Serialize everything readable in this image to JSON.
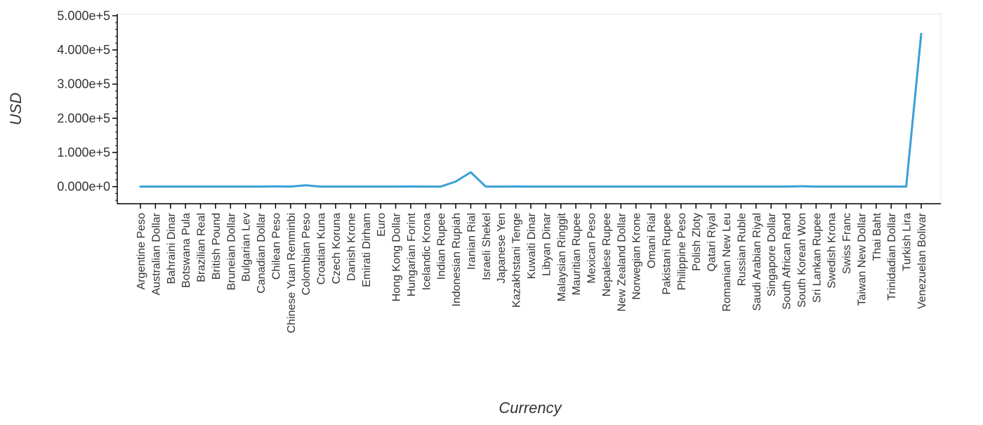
{
  "chart_data": {
    "type": "line",
    "title": "",
    "xlabel": "Currency",
    "ylabel": "USD",
    "ylim": [
      -50000,
      505000
    ],
    "yticks": [
      0,
      100000,
      200000,
      300000,
      400000,
      500000
    ],
    "ytick_labels": [
      "0.000e+0",
      "1.000e+5",
      "2.000e+5",
      "3.000e+5",
      "4.000e+5",
      "5.000e+5"
    ],
    "grid": false,
    "legend": "none",
    "line_color": "#3a9fd6",
    "categories": [
      "Argentine Peso",
      "Australian Dollar",
      "Bahraini Dinar",
      "Botswana Pula",
      "Brazilian Real",
      "British Pound",
      "Bruneian Dollar",
      "Bulgarian Lev",
      "Canadian Dollar",
      "Chilean Peso",
      "Chinese Yuan Renminbi",
      "Colombian Peso",
      "Croatian Kuna",
      "Czech Koruna",
      "Danish Krone",
      "Emirati Dirham",
      "Euro",
      "Hong Kong Dollar",
      "Hungarian Forint",
      "Icelandic Krona",
      "Indian Rupee",
      "Indonesian Rupiah",
      "Iranian Rial",
      "Israeli Shekel",
      "Japanese Yen",
      "Kazakhstani Tenge",
      "Kuwaiti Dinar",
      "Libyan Dinar",
      "Malaysian Ringgit",
      "Mauritian Rupee",
      "Mexican Peso",
      "Nepalese Rupee",
      "New Zealand Dollar",
      "Norwegian Krone",
      "Omani Rial",
      "Pakistani Rupee",
      "Philippine Peso",
      "Polish Zloty",
      "Qatari Riyal",
      "Romanian New Leu",
      "Russian Ruble",
      "Saudi Arabian Riyal",
      "Singapore Dollar",
      "South African Rand",
      "South Korean Won",
      "Sri Lankan Rupee",
      "Swedish Krona",
      "Swiss Franc",
      "Taiwan New Dollar",
      "Thai Baht",
      "Trinidadian Dollar",
      "Turkish Lira",
      "Venezuelan Bolivar"
    ],
    "series": [
      {
        "values": [
          100,
          2,
          1,
          12,
          4,
          1,
          2,
          2,
          2,
          800,
          8,
          3900,
          8,
          25,
          7,
          4,
          1,
          8,
          350,
          130,
          80,
          15000,
          42000,
          4,
          115,
          470,
          1,
          2,
          5,
          40,
          20,
          130,
          2,
          10,
          1,
          160,
          55,
          4,
          4,
          5,
          75,
          4,
          2,
          15,
          1250,
          200,
          10,
          1,
          30,
          32,
          7,
          17,
          447000
        ]
      }
    ]
  }
}
